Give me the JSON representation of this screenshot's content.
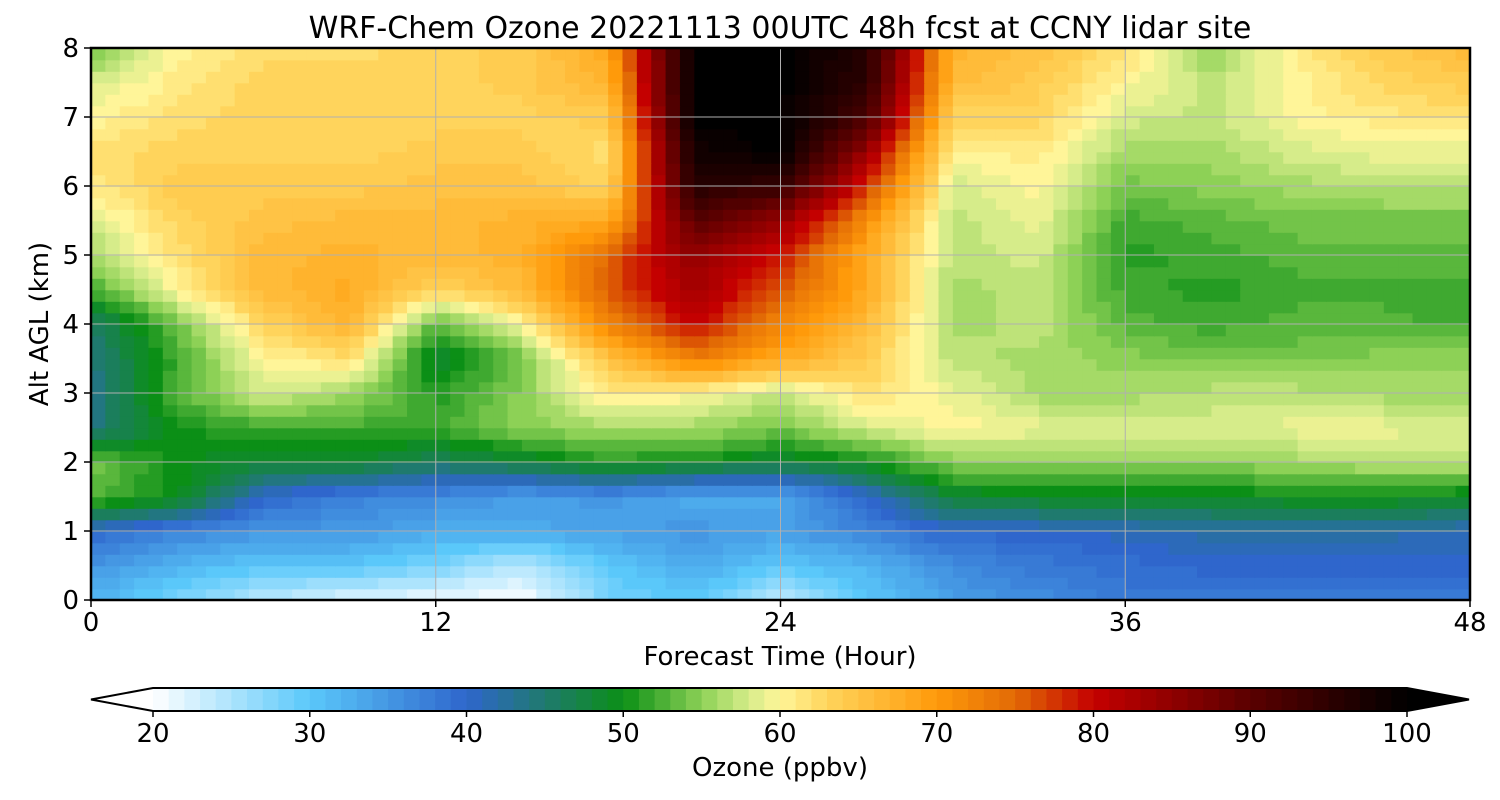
{
  "chart_data": {
    "type": "heatmap",
    "title": "WRF-Chem Ozone  20221113 00UTC 48h fcst at CCNY lidar site",
    "xlabel": "Forecast Time (Hour)",
    "ylabel": "Alt AGL (km)",
    "xlim": [
      0,
      48
    ],
    "ylim": [
      0,
      8
    ],
    "xticks": [
      0,
      12,
      24,
      36,
      48
    ],
    "yticks": [
      0,
      1,
      2,
      3,
      4,
      5,
      6,
      7,
      8
    ],
    "grid": true,
    "x": [
      0,
      3,
      6,
      9,
      12,
      15,
      18,
      21,
      24,
      27,
      30,
      33,
      36,
      39,
      42,
      45,
      48
    ],
    "y": [
      0,
      0.5,
      1,
      1.5,
      2,
      2.5,
      3,
      3.5,
      4,
      4.5,
      5,
      5.5,
      6,
      6.5,
      7,
      7.5,
      8
    ],
    "z": [
      [
        32,
        28,
        24,
        22,
        21,
        20,
        28,
        30,
        24,
        30,
        34,
        36,
        38,
        38,
        37,
        38,
        38
      ],
      [
        35,
        32,
        30,
        30,
        28,
        24,
        30,
        33,
        30,
        32,
        36,
        38,
        39,
        40,
        40,
        40,
        40
      ],
      [
        40,
        37,
        35,
        35,
        33,
        33,
        34,
        35,
        34,
        37,
        40,
        40,
        41,
        42,
        42,
        42,
        41
      ],
      [
        53,
        50,
        40,
        37,
        36,
        34,
        35,
        33,
        33,
        40,
        48,
        49,
        49,
        49,
        50,
        50,
        49
      ],
      [
        54,
        50,
        48,
        49,
        46,
        48,
        51,
        50,
        48,
        50,
        55,
        55,
        55,
        55,
        56,
        57,
        57
      ],
      [
        44,
        50,
        52,
        52,
        52,
        55,
        56,
        56,
        54,
        58,
        60,
        59,
        58,
        58,
        59,
        59,
        58
      ],
      [
        43,
        53,
        58,
        56,
        51,
        55,
        61,
        60,
        57,
        62,
        59,
        56,
        56,
        57,
        57,
        56,
        56
      ],
      [
        44,
        52,
        60,
        62,
        48,
        54,
        65,
        73,
        68,
        64,
        57,
        56,
        55,
        54,
        54,
        55,
        55
      ],
      [
        45,
        54,
        63,
        67,
        53,
        60,
        72,
        80,
        72,
        66,
        56,
        57,
        53,
        52,
        53,
        53,
        52
      ],
      [
        52,
        60,
        66,
        68,
        63,
        66,
        76,
        83,
        76,
        68,
        56,
        57,
        52,
        51,
        52,
        52,
        52
      ],
      [
        56,
        62,
        66,
        67,
        66,
        67,
        75,
        85,
        79,
        68,
        57,
        58,
        51,
        52,
        53,
        53,
        53
      ],
      [
        58,
        63,
        65,
        66,
        66,
        67,
        68,
        90,
        84,
        71,
        57,
        59,
        52,
        53,
        54,
        54,
        54
      ],
      [
        61,
        64,
        64,
        64,
        65,
        65,
        63,
        96,
        94,
        78,
        58,
        60,
        54,
        55,
        56,
        57,
        57
      ],
      [
        62,
        63,
        63,
        63,
        64,
        64,
        62,
        98,
        100,
        84,
        60,
        61,
        56,
        56,
        58,
        59,
        59
      ],
      [
        60,
        62,
        63,
        63,
        63,
        63,
        64,
        100,
        100,
        92,
        63,
        63,
        58,
        57,
        60,
        61,
        62
      ],
      [
        58,
        61,
        63,
        63,
        63,
        64,
        67,
        100,
        100,
        95,
        66,
        64,
        60,
        57,
        60,
        63,
        64
      ],
      [
        54,
        60,
        62,
        62,
        63,
        64,
        68,
        100,
        100,
        96,
        67,
        65,
        62,
        55,
        61,
        64,
        66
      ]
    ],
    "colorbar": {
      "label": "Ozone  (ppbv)",
      "min": 20,
      "max": 100,
      "ticks": [
        20,
        30,
        40,
        50,
        60,
        70,
        80,
        90,
        100
      ],
      "extend": "both",
      "stops": [
        {
          "v": 20,
          "c": "#ffffff"
        },
        {
          "v": 30,
          "c": "#5ac8fa"
        },
        {
          "v": 40,
          "c": "#2f66cc"
        },
        {
          "v": 45,
          "c": "#1f7a6e"
        },
        {
          "v": 50,
          "c": "#0b8f16"
        },
        {
          "v": 55,
          "c": "#8dd156"
        },
        {
          "v": 58,
          "c": "#d6ec8a"
        },
        {
          "v": 60,
          "c": "#fff599"
        },
        {
          "v": 63,
          "c": "#ffd45c"
        },
        {
          "v": 70,
          "c": "#ff9a0a"
        },
        {
          "v": 75,
          "c": "#e26a05"
        },
        {
          "v": 80,
          "c": "#c40000"
        },
        {
          "v": 90,
          "c": "#5a0000"
        },
        {
          "v": 100,
          "c": "#000000"
        }
      ]
    }
  }
}
